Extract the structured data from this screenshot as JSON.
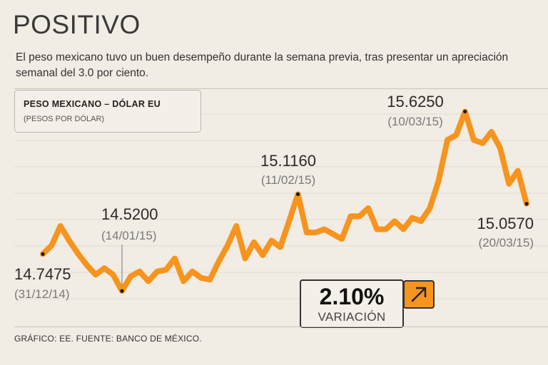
{
  "header": {
    "title": "POSITIVO",
    "subtitle": "El peso mexicano tuvo un buen desempeño durante la semana previa, tras presentar un apreciación semanal del 3.0 por ciento."
  },
  "legend_box": {
    "title": "PESO MEXICANO – DÓLAR EU",
    "subtitle": "(PESOS POR DÓLAR)"
  },
  "variation": {
    "value": "2.10%",
    "label": "VARIACIÓN",
    "icon": "arrow-up-right-icon"
  },
  "footer": "GRÁFICO: EE. FUENTE: BANCO DE MÉXICO.",
  "colors": {
    "line": "#f7941d",
    "background": "#f1ece4",
    "gridline": "#e3ddd3"
  },
  "chart_data": {
    "type": "line",
    "unit": "pesos por dólar",
    "ylim": [
      14.38,
      15.75
    ],
    "grid": true,
    "series": [
      {
        "values": [
          14.7475,
          14.8,
          14.92,
          14.83,
          14.75,
          14.68,
          14.62,
          14.66,
          14.62,
          14.52,
          14.61,
          14.64,
          14.58,
          14.64,
          14.65,
          14.72,
          14.58,
          14.64,
          14.6,
          14.59,
          14.7,
          14.8,
          14.92,
          14.72,
          14.82,
          14.74,
          14.83,
          14.79,
          14.95,
          15.116,
          14.88,
          14.88,
          14.9,
          14.87,
          14.84,
          14.98,
          14.98,
          15.03,
          14.9,
          14.9,
          14.95,
          14.9,
          14.97,
          14.95,
          15.03,
          15.2,
          15.45,
          15.48,
          15.625,
          15.45,
          15.43,
          15.5,
          15.4,
          15.18,
          15.26,
          15.057
        ]
      }
    ],
    "annotations": [
      {
        "value": "14.7475",
        "date": "(31/12/14)",
        "index": 0
      },
      {
        "value": "14.5200",
        "date": "(14/01/15)",
        "index": 9
      },
      {
        "value": "15.1160",
        "date": "(11/02/15)",
        "index": 29
      },
      {
        "value": "15.6250",
        "date": "(10/03/15)",
        "index": 48
      },
      {
        "value": "15.0570",
        "date": "(20/03/15)",
        "index": 55
      }
    ]
  }
}
